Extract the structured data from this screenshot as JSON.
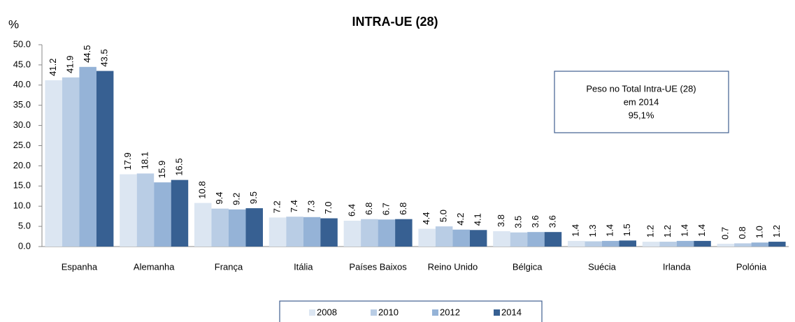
{
  "chart_data": {
    "type": "bar",
    "title": "INTRA-UE (28)",
    "y_label": "%",
    "categories": [
      "Espanha",
      "Alemanha",
      "França",
      "Itália",
      "Países Baixos",
      "Reino Unido",
      "Bélgica",
      "Suécia",
      "Irlanda",
      "Polónia"
    ],
    "series": [
      {
        "name": "2008",
        "color": "#dce6f2",
        "values": [
          41.2,
          17.9,
          10.8,
          7.2,
          6.4,
          4.4,
          3.8,
          1.4,
          1.2,
          0.7
        ],
        "value_labels": [
          "41.2",
          "17.9",
          "10.8",
          "7.2",
          "6.4",
          "4.4",
          "3.8",
          "1.4",
          "1.2",
          "0.7"
        ]
      },
      {
        "name": "2010",
        "color": "#b9cde5",
        "values": [
          41.9,
          18.1,
          9.4,
          7.4,
          6.8,
          5.0,
          3.5,
          1.3,
          1.2,
          0.8
        ],
        "value_labels": [
          "41.9",
          "18.1",
          "9.4",
          "7.4",
          "6.8",
          "5.0",
          "3.5",
          "1.3",
          "1.2",
          "0.8"
        ]
      },
      {
        "name": "2012",
        "color": "#95b3d7",
        "values": [
          44.5,
          15.9,
          9.2,
          7.3,
          6.7,
          4.2,
          3.6,
          1.4,
          1.4,
          1.0
        ],
        "value_labels": [
          "44.5",
          "15.9",
          "9.2",
          "7.3",
          "6.7",
          "4.2",
          "3.6",
          "1.4",
          "1.4",
          "1.0"
        ]
      },
      {
        "name": "2014",
        "color": "#376092",
        "values": [
          43.5,
          16.5,
          9.5,
          7.0,
          6.8,
          4.1,
          3.6,
          1.5,
          1.4,
          1.2
        ],
        "value_labels": [
          "43.5",
          "16.5",
          "9.5",
          "7.0",
          "6.8",
          "4.1",
          "3.6",
          "1.5",
          "1.4",
          "1.2"
        ]
      }
    ],
    "ylim": [
      0,
      50
    ],
    "yticks": [
      {
        "value": 0,
        "label": "0.0"
      },
      {
        "value": 5,
        "label": "5.0"
      },
      {
        "value": 10,
        "label": "10.0"
      },
      {
        "value": 15,
        "label": "15.0"
      },
      {
        "value": 20,
        "label": "20.0"
      },
      {
        "value": 25,
        "label": "25.0"
      },
      {
        "value": 30,
        "label": "30.0"
      },
      {
        "value": 35,
        "label": "35.0"
      },
      {
        "value": 40,
        "label": "40.0"
      },
      {
        "value": 45,
        "label": "45.0"
      },
      {
        "value": 50,
        "label": "50.0"
      }
    ],
    "grid": false,
    "legend": "bottom",
    "annotation": [
      "Peso no Total Intra-UE (28)",
      "em 2014",
      "95,1%"
    ]
  }
}
